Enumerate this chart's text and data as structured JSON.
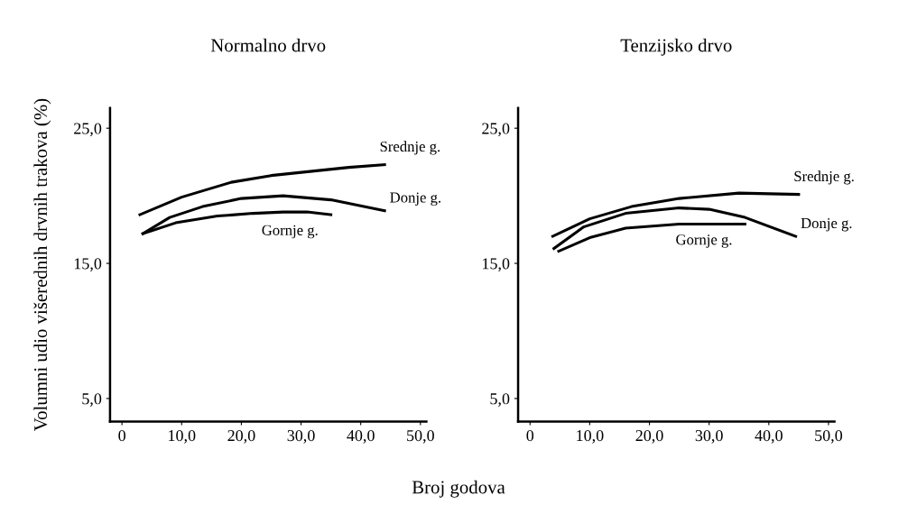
{
  "chart_data": [
    {
      "type": "line",
      "title": "Normalno drvo",
      "ylabel": "Volumni udio višerednih drvnih trakova (%)",
      "xlabel": "Broj godova",
      "xlim": [
        -2,
        51
      ],
      "ylim": [
        3.3,
        26.5
      ],
      "xticks": [
        0,
        {
          "value": 10,
          "label": "10,0"
        },
        {
          "value": 20,
          "label": "20,0"
        },
        {
          "value": 30,
          "label": "30,0"
        },
        {
          "value": 40,
          "label": "40,0"
        },
        {
          "value": 50,
          "label": "50,0"
        }
      ],
      "yticks": [
        {
          "value": 5,
          "label": "5,0"
        },
        {
          "value": 15,
          "label": "15,0"
        },
        {
          "value": 25,
          "label": "25,0"
        }
      ],
      "grid": false,
      "legend": false,
      "series": [
        {
          "name": "Srednje g.",
          "color": "#000000",
          "x": [
            3,
            10,
            18.3,
            25,
            31.5,
            38,
            44
          ],
          "values": [
            18.6,
            19.9,
            21.0,
            21.5,
            21.8,
            22.1,
            22.3
          ]
        },
        {
          "name": "Donje g.",
          "color": "#000000",
          "x": [
            3.5,
            8,
            13.5,
            20,
            27,
            35,
            44
          ],
          "values": [
            17.2,
            18.4,
            19.2,
            19.8,
            20.0,
            19.7,
            18.9
          ]
        },
        {
          "name": "Gornje g.",
          "color": "#000000",
          "x": [
            3.5,
            9,
            16,
            22,
            27,
            31,
            35
          ],
          "values": [
            17.2,
            18.0,
            18.5,
            18.7,
            18.8,
            18.8,
            18.6
          ]
        }
      ]
    },
    {
      "type": "line",
      "title": "Tenzijsko drvo",
      "xlim": [
        -2,
        51
      ],
      "ylim": [
        3.3,
        26.5
      ],
      "xticks": [
        0,
        {
          "value": 10,
          "label": "10,0"
        },
        {
          "value": 20,
          "label": "20,0"
        },
        {
          "value": 30,
          "label": "30,0"
        },
        {
          "value": 40,
          "label": "40,0"
        },
        {
          "value": 50,
          "label": "50,0"
        }
      ],
      "yticks": [
        {
          "value": 5,
          "label": "5,0"
        },
        {
          "value": 15,
          "label": "15,0"
        },
        {
          "value": 25,
          "label": "25,0"
        }
      ],
      "grid": false,
      "legend": false,
      "series": [
        {
          "name": "Srednje g.",
          "color": "#000000",
          "x": [
            3.8,
            10,
            17,
            25,
            35,
            45
          ],
          "values": [
            17.0,
            18.3,
            19.2,
            19.8,
            20.2,
            20.1
          ]
        },
        {
          "name": "Donje g.",
          "color": "#000000",
          "x": [
            4,
            9,
            16,
            25,
            30,
            36,
            44.5
          ],
          "values": [
            16.1,
            17.7,
            18.7,
            19.1,
            19.0,
            18.4,
            17.0
          ]
        },
        {
          "name": "Gornje g.",
          "color": "#000000",
          "x": [
            4.8,
            10,
            16,
            25,
            36
          ],
          "values": [
            15.9,
            16.9,
            17.6,
            17.9,
            17.9
          ]
        }
      ]
    }
  ]
}
